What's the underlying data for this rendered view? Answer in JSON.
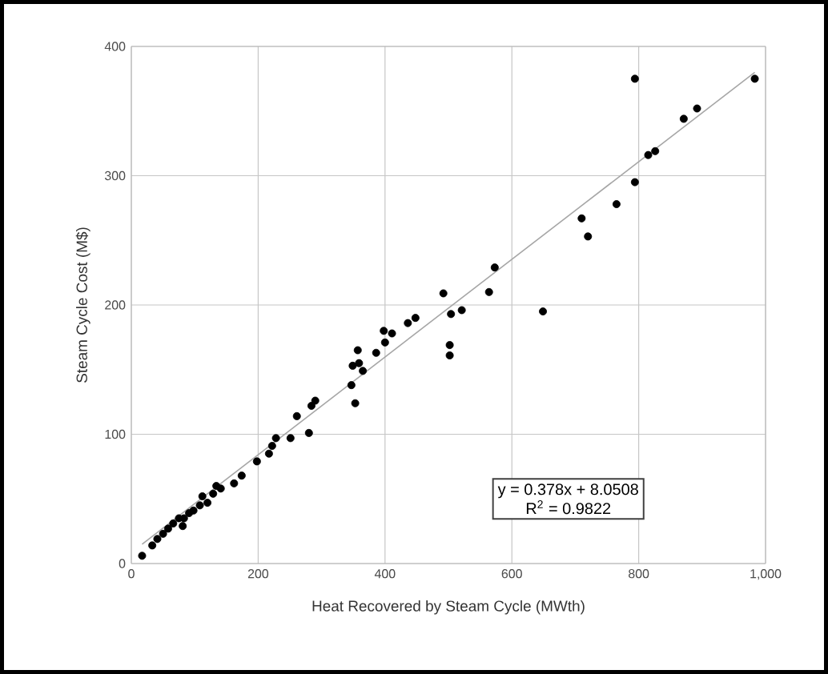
{
  "chart_data": {
    "type": "scatter",
    "xlabel": "Heat Recovered by Steam Cycle (MWth)",
    "ylabel": "Steam Cycle Cost (M$)",
    "xlim": [
      0,
      1000
    ],
    "ylim": [
      0,
      400
    ],
    "xticks": [
      0,
      200,
      400,
      600,
      800,
      {
        "value": 1000,
        "label": "1,000"
      }
    ],
    "yticks": [
      0,
      100,
      200,
      300,
      400
    ],
    "grid": true,
    "annotations": [
      "y = 0.378x + 8.0508",
      "R$^{2}$ = 0.9822"
    ],
    "series": [
      {
        "color": "#000000",
        "marker": "circle",
        "x": [
          17,
          33,
          41,
          50,
          58,
          66,
          75,
          83,
          81,
          91,
          98,
          108,
          112,
          120,
          129,
          134,
          141,
          162,
          174,
          198,
          217,
          222,
          228,
          251,
          261,
          280,
          284,
          290,
          347,
          349,
          353,
          357,
          359,
          365,
          386,
          398,
          400,
          411,
          436,
          448,
          492,
          502,
          502,
          504,
          521,
          564,
          573,
          649,
          710,
          720,
          765,
          794,
          794,
          815,
          826,
          871,
          892,
          983
        ],
        "values": [
          6,
          14,
          19,
          23,
          27,
          31,
          35,
          35,
          29,
          39,
          41,
          45,
          52,
          47,
          54,
          60,
          58,
          62,
          68,
          79,
          85,
          91,
          97,
          97,
          114,
          101,
          122,
          126,
          138,
          153,
          124,
          165,
          155,
          149,
          163,
          180,
          171,
          178,
          186,
          190,
          209,
          161,
          169,
          193,
          196,
          210,
          229,
          195,
          267,
          253,
          278,
          375,
          295,
          316,
          319,
          344,
          352,
          375
        ]
      },
      {
        "type": "line",
        "color": "#a6a6a6",
        "marker": "none",
        "x": [
          17,
          983
        ],
        "values": [
          15,
          380
        ]
      }
    ]
  }
}
